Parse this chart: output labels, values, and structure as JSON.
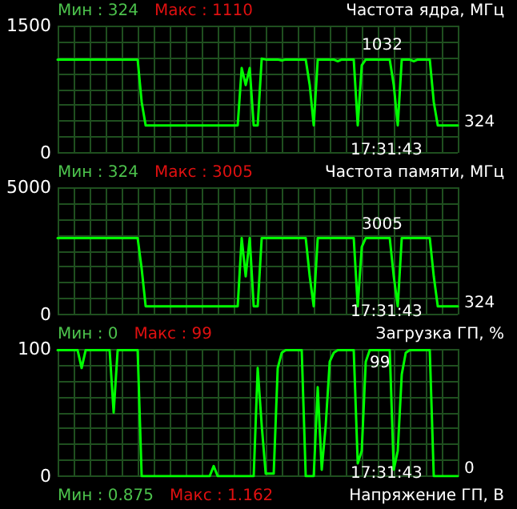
{
  "chart_data": [
    {
      "type": "line",
      "title": "Частота ядра, МГц",
      "annotations": [
        "Мин : 324",
        "Макс : 1110",
        "17:31:43",
        "1032",
        "324"
      ],
      "categories": [
        null,
        null,
        null,
        null,
        null,
        null,
        null,
        null,
        null,
        null,
        null,
        null,
        null,
        null,
        null,
        null,
        null,
        null,
        null,
        null,
        null,
        null,
        null,
        null,
        null,
        null,
        null,
        null,
        null,
        null,
        null,
        null,
        null,
        null,
        null,
        null,
        null,
        null,
        null,
        null,
        null,
        null,
        null,
        null,
        null,
        null,
        null,
        null,
        null,
        null,
        null,
        null,
        null,
        null,
        null,
        null,
        null,
        null,
        null,
        null,
        null,
        null,
        null,
        null,
        null,
        null,
        null,
        null,
        null,
        null,
        null,
        null,
        null,
        null,
        null,
        null,
        null,
        null,
        null,
        null,
        null,
        null,
        null,
        null,
        null,
        null,
        null,
        null,
        null,
        null,
        null,
        null,
        null,
        null,
        null,
        null,
        null,
        null,
        null,
        null,
        null
      ],
      "series": [
        {
          "color": "#00ff00",
          "values": [
            1100,
            1100,
            1100,
            1100,
            1100,
            1100,
            1100,
            1100,
            1100,
            1100,
            1100,
            1100,
            1100,
            1100,
            1100,
            1100,
            1100,
            1100,
            1100,
            1100,
            1100,
            600,
            324,
            324,
            324,
            324,
            324,
            324,
            324,
            324,
            324,
            324,
            324,
            324,
            324,
            324,
            324,
            324,
            324,
            324,
            324,
            324,
            324,
            324,
            324,
            324,
            1000,
            800,
            1000,
            324,
            324,
            1110,
            1100,
            1100,
            1100,
            1100,
            1090,
            1100,
            1100,
            1100,
            1100,
            1100,
            1100,
            800,
            324,
            1100,
            1100,
            1100,
            1100,
            1100,
            1080,
            1100,
            1100,
            1100,
            1100,
            324,
            1032,
            1100,
            1100,
            1100,
            1100,
            1100,
            1100,
            1100,
            800,
            324,
            1100,
            1100,
            1100,
            1080,
            1100,
            1100,
            1100,
            1100,
            600,
            324,
            324,
            324,
            324,
            324,
            324
          ]
        }
      ],
      "ylim": [
        0,
        1500
      ],
      "yticks": [
        0,
        {
          "value": 187.5,
          "label": null
        },
        {
          "value": 375,
          "label": null
        },
        {
          "value": 562.5,
          "label": null
        },
        {
          "value": 750,
          "label": null
        },
        {
          "value": 937.5,
          "label": null
        },
        {
          "value": 1125,
          "label": null
        },
        {
          "value": 1312.5,
          "label": null
        },
        1500
      ],
      "grid": true,
      "tick_labels": "y",
      "line_style": "solid"
    },
    {
      "type": "line",
      "title": "Частота памяти, МГц",
      "annotations": [
        "Мин : 324",
        "Макс : 3005",
        "17:31:43",
        "3005",
        "324"
      ],
      "categories": [
        null,
        null,
        null,
        null,
        null,
        null,
        null,
        null,
        null,
        null,
        null,
        null,
        null,
        null,
        null,
        null,
        null,
        null,
        null,
        null,
        null,
        null,
        null,
        null,
        null,
        null,
        null,
        null,
        null,
        null,
        null,
        null,
        null,
        null,
        null,
        null,
        null,
        null,
        null,
        null,
        null,
        null,
        null,
        null,
        null,
        null,
        null,
        null,
        null,
        null,
        null,
        null,
        null,
        null,
        null,
        null,
        null,
        null,
        null,
        null,
        null,
        null,
        null,
        null,
        null,
        null,
        null,
        null,
        null,
        null,
        null,
        null,
        null,
        null,
        null,
        null,
        null,
        null,
        null,
        null,
        null,
        null,
        null,
        null,
        null,
        null,
        null,
        null,
        null,
        null,
        null,
        null,
        null,
        null,
        null,
        null,
        null,
        null,
        null,
        null,
        null
      ],
      "series": [
        {
          "color": "#00ff00",
          "values": [
            3005,
            3005,
            3005,
            3005,
            3005,
            3005,
            3005,
            3005,
            3005,
            3005,
            3005,
            3005,
            3005,
            3005,
            3005,
            3005,
            3005,
            3005,
            3005,
            3005,
            3005,
            1800,
            324,
            324,
            324,
            324,
            324,
            324,
            324,
            324,
            324,
            324,
            324,
            324,
            324,
            324,
            324,
            324,
            324,
            324,
            324,
            324,
            324,
            324,
            324,
            324,
            3005,
            1500,
            3005,
            324,
            324,
            3005,
            3005,
            3005,
            3005,
            3005,
            3005,
            3005,
            3005,
            3005,
            3005,
            3005,
            3005,
            1500,
            324,
            3005,
            3005,
            3005,
            3005,
            3005,
            3005,
            3005,
            3005,
            3005,
            3005,
            324,
            2650,
            3005,
            3005,
            3005,
            3005,
            3005,
            3005,
            3005,
            1500,
            324,
            3005,
            3005,
            3005,
            3005,
            3005,
            3005,
            3005,
            3005,
            1500,
            324,
            324,
            324,
            324,
            324,
            324
          ]
        }
      ],
      "ylim": [
        0,
        5000
      ],
      "yticks": [
        0,
        {
          "value": 625,
          "label": null
        },
        {
          "value": 1250,
          "label": null
        },
        {
          "value": 1875,
          "label": null
        },
        {
          "value": 2500,
          "label": null
        },
        {
          "value": 3125,
          "label": null
        },
        {
          "value": 3750,
          "label": null
        },
        {
          "value": 4375,
          "label": null
        },
        5000
      ],
      "grid": true,
      "tick_labels": "y",
      "line_style": "solid"
    },
    {
      "type": "line",
      "title": "Загрузка ГП, %",
      "annotations": [
        "Мин : 0",
        "Макс : 99",
        "17:31:43",
        "99",
        "0"
      ],
      "categories": [
        null,
        null,
        null,
        null,
        null,
        null,
        null,
        null,
        null,
        null,
        null,
        null,
        null,
        null,
        null,
        null,
        null,
        null,
        null,
        null,
        null,
        null,
        null,
        null,
        null,
        null,
        null,
        null,
        null,
        null,
        null,
        null,
        null,
        null,
        null,
        null,
        null,
        null,
        null,
        null,
        null,
        null,
        null,
        null,
        null,
        null,
        null,
        null,
        null,
        null,
        null,
        null,
        null,
        null,
        null,
        null,
        null,
        null,
        null,
        null,
        null,
        null,
        null,
        null,
        null,
        null,
        null,
        null,
        null,
        null,
        null,
        null,
        null,
        null,
        null,
        null,
        null,
        null,
        null,
        null,
        null,
        null,
        null,
        null,
        null,
        null,
        null,
        null,
        null,
        null,
        null,
        null,
        null,
        null,
        null,
        null,
        null,
        null,
        null,
        null,
        null
      ],
      "series": [
        {
          "color": "#00ff00",
          "values": [
            99,
            99,
            99,
            99,
            99,
            99,
            85,
            99,
            99,
            99,
            99,
            99,
            99,
            99,
            50,
            99,
            99,
            99,
            99,
            99,
            99,
            0,
            0,
            0,
            0,
            0,
            0,
            0,
            0,
            0,
            0,
            0,
            0,
            0,
            0,
            0,
            0,
            0,
            0,
            8,
            0,
            0,
            0,
            0,
            0,
            0,
            0,
            0,
            0,
            0,
            85,
            40,
            2,
            2,
            2,
            85,
            97,
            99,
            99,
            99,
            99,
            99,
            0,
            0,
            0,
            70,
            5,
            40,
            90,
            97,
            99,
            99,
            99,
            99,
            99,
            10,
            20,
            90,
            99,
            99,
            99,
            99,
            99,
            99,
            5,
            20,
            80,
            97,
            99,
            99,
            99,
            99,
            99,
            99,
            0,
            0,
            0,
            0,
            0,
            0,
            0
          ]
        }
      ],
      "ylim": [
        0,
        100
      ],
      "yticks": [
        0,
        {
          "value": 12.5,
          "label": null
        },
        {
          "value": 25,
          "label": null
        },
        {
          "value": 37.5,
          "label": null
        },
        {
          "value": 50,
          "label": null
        },
        {
          "value": 62.5,
          "label": null
        },
        {
          "value": 75,
          "label": null
        },
        {
          "value": 87.5,
          "label": null
        },
        100
      ],
      "grid": true,
      "tick_labels": "y",
      "line_style": "solid"
    },
    {
      "type": "other",
      "title": "Напряжение ГП, В",
      "annotations": [
        "Мин : 0.875",
        "Макс : 1.162"
      ]
    }
  ]
}
